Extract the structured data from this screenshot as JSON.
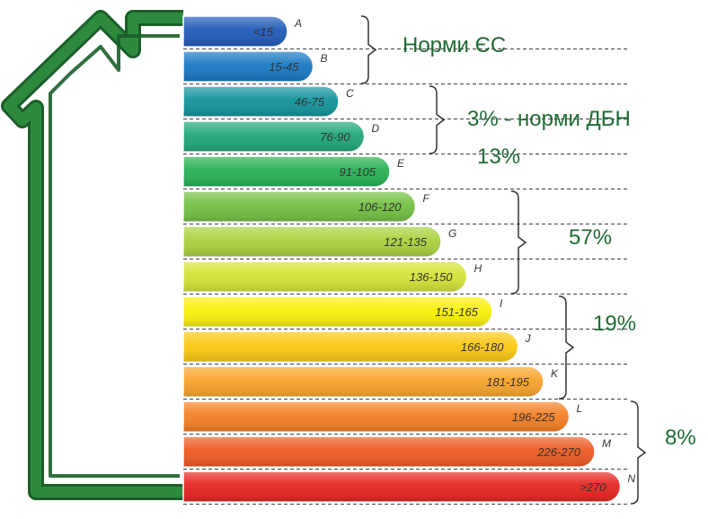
{
  "classes": [
    {
      "range": "<15",
      "letter": "A",
      "color": "#1f5ab8"
    },
    {
      "range": "15-45",
      "letter": "B",
      "color": "#1878c2"
    },
    {
      "range": "46-75",
      "letter": "C",
      "color": "#12939c"
    },
    {
      "range": "76-90",
      "letter": "D",
      "color": "#1fa678"
    },
    {
      "range": "91-105",
      "letter": "E",
      "color": "#27b053"
    },
    {
      "range": "106-120",
      "letter": "F",
      "color": "#72c043"
    },
    {
      "range": "121-135",
      "letter": "G",
      "color": "#a8d23c"
    },
    {
      "range": "136-150",
      "letter": "H",
      "color": "#d6e234"
    },
    {
      "range": "151-165",
      "letter": "I",
      "color": "#fbf00a"
    },
    {
      "range": "166-180",
      "letter": "J",
      "color": "#fcc812"
    },
    {
      "range": "181-195",
      "letter": "K",
      "color": "#f8a42a"
    },
    {
      "range": "196-225",
      "letter": "L",
      "color": "#f47f24"
    },
    {
      "range": "226-270",
      "letter": "M",
      "color": "#ee5a22"
    },
    {
      "range": ">270",
      "letter": "N",
      "color": "#e52420"
    }
  ],
  "groups": [
    {
      "label": "Норми ЄС",
      "from": 0,
      "to": 1
    },
    {
      "label": "3% - норми ДБН",
      "from": 2,
      "to": 3
    },
    {
      "label": "13%",
      "from": 4,
      "to": 4
    },
    {
      "label": "57%",
      "from": 5,
      "to": 7
    },
    {
      "label": "19%",
      "from": 8,
      "to": 10
    },
    {
      "label": "8%",
      "from": 11,
      "to": 13
    }
  ],
  "colors": {
    "house_outline": "#2e8b3e",
    "label_text": "#1e6b35",
    "separator": "#555555"
  },
  "icons": {
    "house": "house-outline-icon"
  }
}
